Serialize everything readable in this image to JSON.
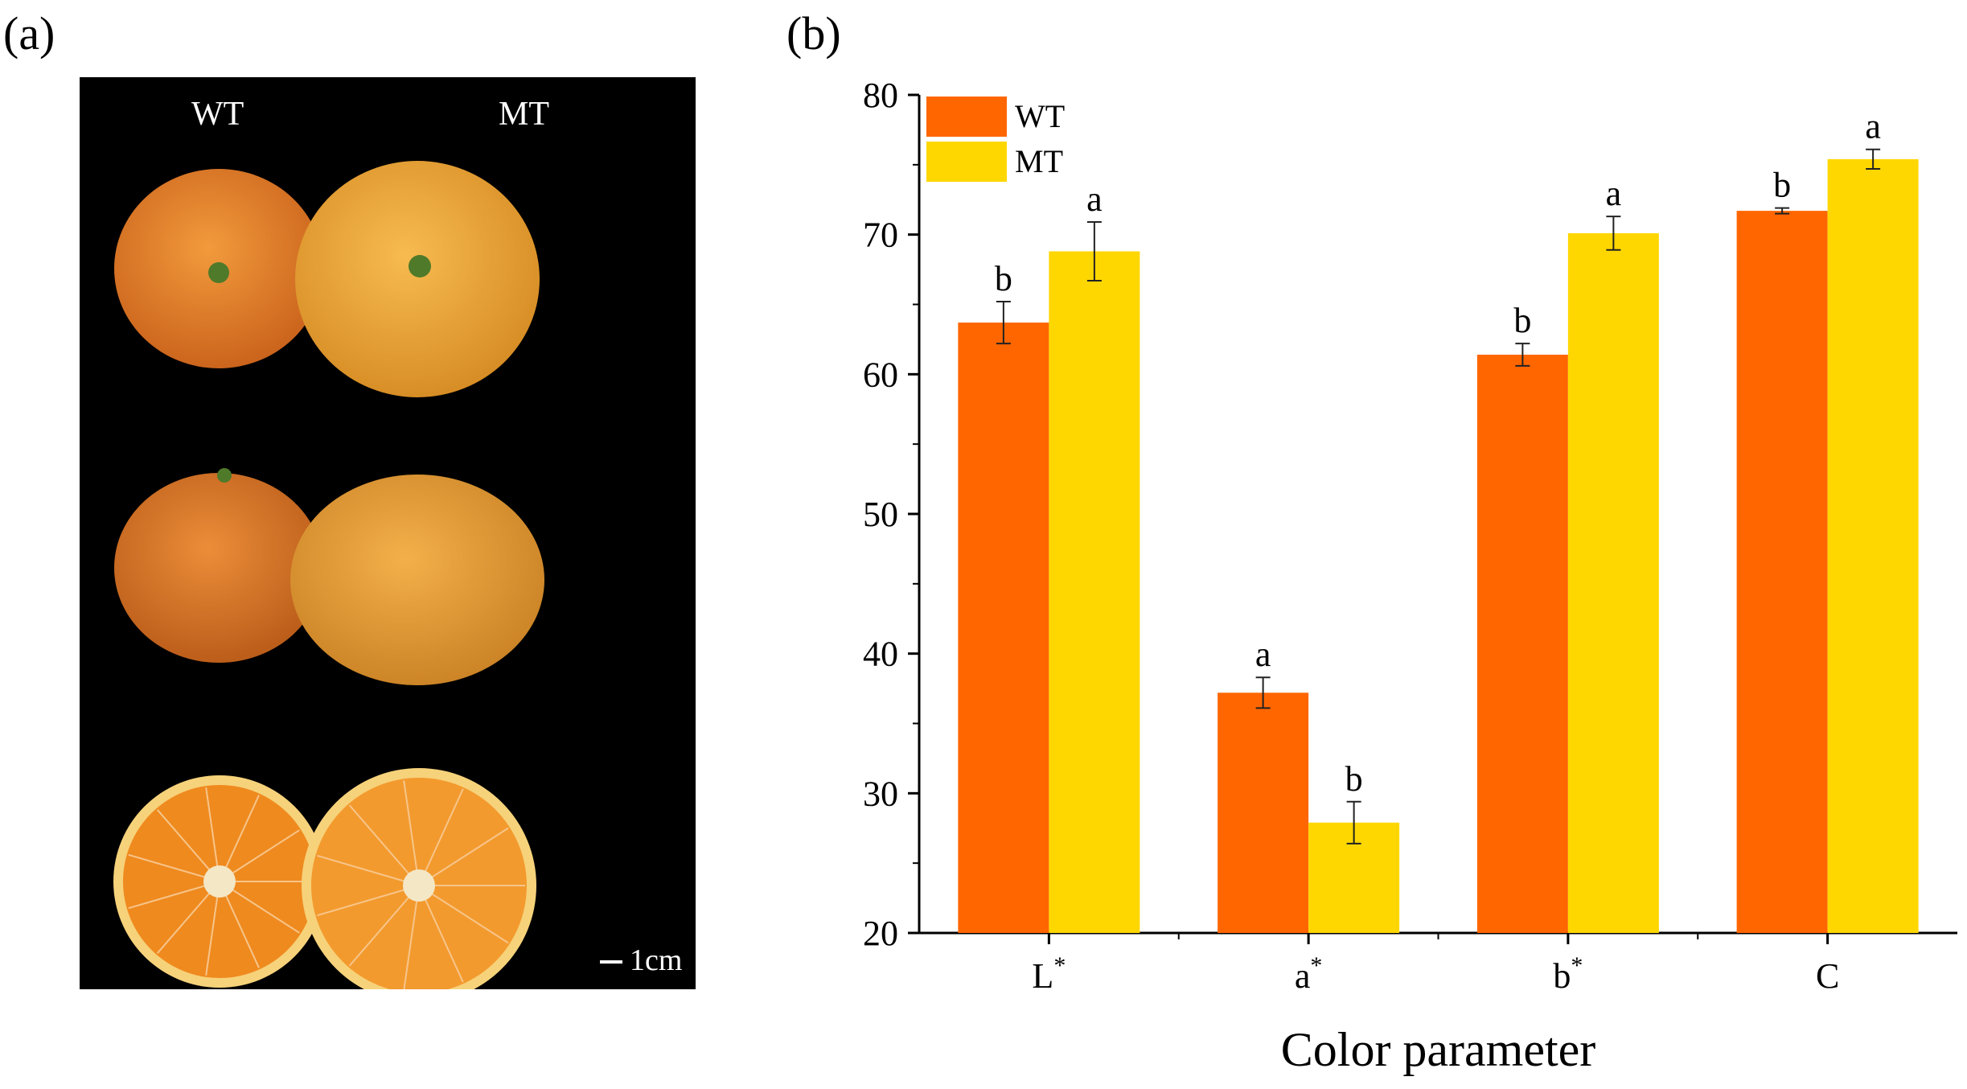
{
  "panels": {
    "a_label": "(a)",
    "b_label": "(b)"
  },
  "photo": {
    "col_labels": [
      "WT",
      "MT"
    ],
    "scale_label": "1cm",
    "colors": {
      "background": "#000000",
      "wt_peel": "#e8822a",
      "mt_peel": "#f1a534",
      "wt_flesh": "#ef8a1f",
      "mt_flesh": "#f39a2e",
      "rind": "#f6d27a"
    }
  },
  "chart_data": {
    "type": "bar",
    "categories": [
      "L",
      "a",
      "b",
      "C"
    ],
    "category_superscripts": [
      "*",
      "*",
      "*",
      ""
    ],
    "xlabel": "Color parameter",
    "ylabel": "",
    "ylim": [
      20,
      80
    ],
    "yticks": [
      20,
      30,
      40,
      50,
      60,
      70,
      80
    ],
    "legend_position": "top-left",
    "series": [
      {
        "name": "WT",
        "color": "#ff6600",
        "values": [
          63.7,
          37.2,
          61.4,
          71.7
        ],
        "errors": [
          1.5,
          1.1,
          0.8,
          0.2
        ],
        "significance": [
          "b",
          "a",
          "b",
          "b"
        ]
      },
      {
        "name": "MT",
        "color": "#ffd700",
        "values": [
          68.8,
          27.9,
          70.1,
          75.4
        ],
        "errors": [
          2.1,
          1.5,
          1.2,
          0.7
        ],
        "significance": [
          "a",
          "b",
          "a",
          "a"
        ]
      }
    ]
  }
}
